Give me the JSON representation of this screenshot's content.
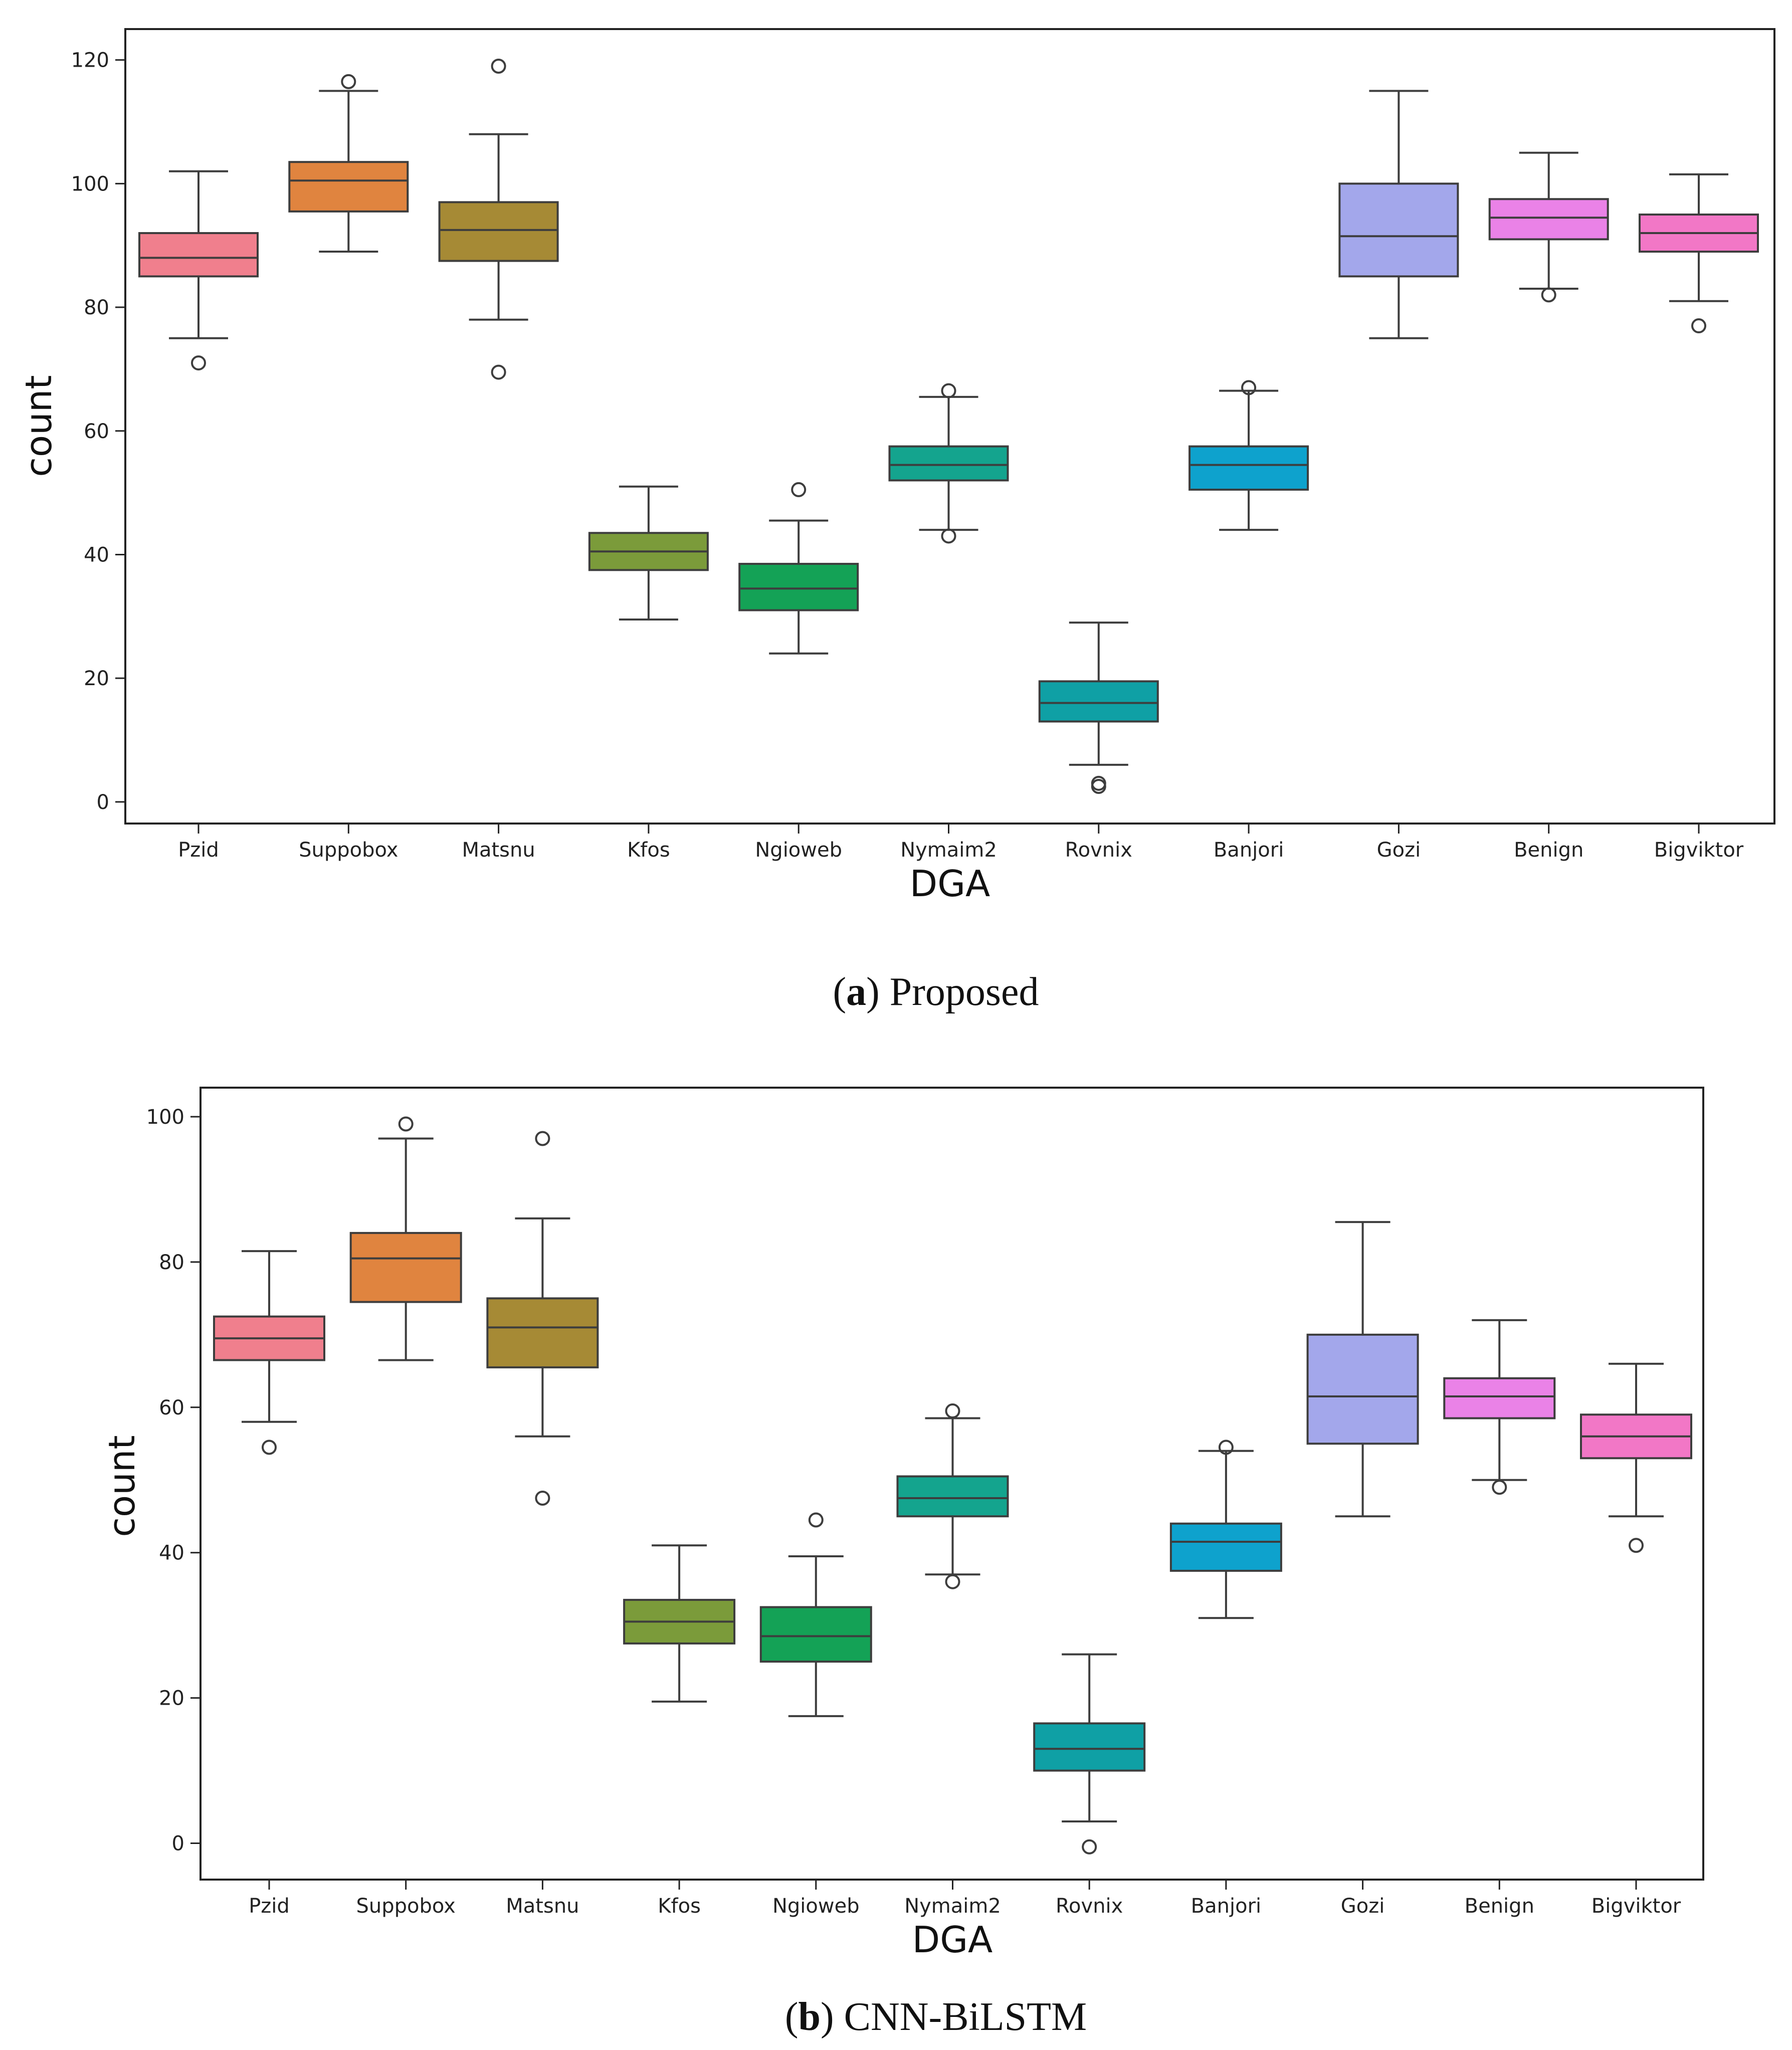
{
  "chart_data": [
    {
      "type": "box",
      "caption": {
        "label": "a",
        "open": "(",
        "close": ")",
        "text": " Proposed"
      },
      "xlabel": "DGA",
      "ylabel": "count",
      "ylim": [
        -3.5,
        125
      ],
      "yticks": [
        0,
        20,
        40,
        60,
        80,
        100,
        120
      ],
      "categories": [
        "Pzid",
        "Suppobox",
        "Matsnu",
        "Kfos",
        "Ngioweb",
        "Nymaim2",
        "Rovnix",
        "Banjori",
        "Gozi",
        "Benign",
        "Bigviktor"
      ],
      "colors": [
        "#f07f8d",
        "#e0843f",
        "#a68a35",
        "#7b9b3a",
        "#14a256",
        "#14a48e",
        "#0fa0a5",
        "#0ea2cd",
        "#a3a7eb",
        "#ea82e7",
        "#f277c6"
      ],
      "boxes": [
        {
          "q1": 85,
          "median": 88,
          "q3": 92,
          "whisker_low": 75,
          "whisker_high": 102,
          "outliers": [
            71
          ]
        },
        {
          "q1": 95.5,
          "median": 100.5,
          "q3": 103.5,
          "whisker_low": 89,
          "whisker_high": 115,
          "outliers": [
            116.5
          ]
        },
        {
          "q1": 87.5,
          "median": 92.5,
          "q3": 97,
          "whisker_low": 78,
          "whisker_high": 108,
          "outliers": [
            119,
            69.5
          ]
        },
        {
          "q1": 37.5,
          "median": 40.5,
          "q3": 43.5,
          "whisker_low": 29.5,
          "whisker_high": 51,
          "outliers": []
        },
        {
          "q1": 31,
          "median": 34.5,
          "q3": 38.5,
          "whisker_low": 24,
          "whisker_high": 45.5,
          "outliers": [
            50.5
          ]
        },
        {
          "q1": 52,
          "median": 54.5,
          "q3": 57.5,
          "whisker_low": 44,
          "whisker_high": 65.5,
          "outliers": [
            66.5,
            43
          ]
        },
        {
          "q1": 13,
          "median": 16,
          "q3": 19.5,
          "whisker_low": 6,
          "whisker_high": 29,
          "outliers": [
            3,
            2.5
          ]
        },
        {
          "q1": 50.5,
          "median": 54.5,
          "q3": 57.5,
          "whisker_low": 44,
          "whisker_high": 66.5,
          "outliers": [
            67
          ]
        },
        {
          "q1": 85,
          "median": 91.5,
          "q3": 100,
          "whisker_low": 75,
          "whisker_high": 115,
          "outliers": []
        },
        {
          "q1": 91,
          "median": 94.5,
          "q3": 97.5,
          "whisker_low": 83,
          "whisker_high": 105,
          "outliers": [
            82
          ]
        },
        {
          "q1": 89,
          "median": 92,
          "q3": 95,
          "whisker_low": 81,
          "whisker_high": 101.5,
          "outliers": [
            77
          ]
        }
      ]
    },
    {
      "type": "box",
      "caption": {
        "label": "b",
        "open": "(",
        "close": ")",
        "text": " CNN-BiLSTM"
      },
      "xlabel": "DGA",
      "ylabel": "count",
      "ylim": [
        -5,
        104
      ],
      "yticks": [
        0,
        20,
        40,
        60,
        80,
        100
      ],
      "categories": [
        "Pzid",
        "Suppobox",
        "Matsnu",
        "Kfos",
        "Ngioweb",
        "Nymaim2",
        "Rovnix",
        "Banjori",
        "Gozi",
        "Benign",
        "Bigviktor"
      ],
      "colors": [
        "#f07f8d",
        "#e0843f",
        "#a68a35",
        "#7b9b3a",
        "#14a256",
        "#14a48e",
        "#0fa0a5",
        "#0ea2cd",
        "#a3a7eb",
        "#ea82e7",
        "#f277c6"
      ],
      "boxes": [
        {
          "q1": 66.5,
          "median": 69.5,
          "q3": 72.5,
          "whisker_low": 58,
          "whisker_high": 81.5,
          "outliers": [
            54.5
          ]
        },
        {
          "q1": 74.5,
          "median": 80.5,
          "q3": 84,
          "whisker_low": 66.5,
          "whisker_high": 97,
          "outliers": [
            99
          ]
        },
        {
          "q1": 65.5,
          "median": 71,
          "q3": 75,
          "whisker_low": 56,
          "whisker_high": 86,
          "outliers": [
            97,
            47.5
          ]
        },
        {
          "q1": 27.5,
          "median": 30.5,
          "q3": 33.5,
          "whisker_low": 19.5,
          "whisker_high": 41,
          "outliers": []
        },
        {
          "q1": 25,
          "median": 28.5,
          "q3": 32.5,
          "whisker_low": 17.5,
          "whisker_high": 39.5,
          "outliers": [
            44.5
          ]
        },
        {
          "q1": 45,
          "median": 47.5,
          "q3": 50.5,
          "whisker_low": 37,
          "whisker_high": 58.5,
          "outliers": [
            59.5,
            36
          ]
        },
        {
          "q1": 10,
          "median": 13,
          "q3": 16.5,
          "whisker_low": 3,
          "whisker_high": 26,
          "outliers": [
            -0.5
          ]
        },
        {
          "q1": 37.5,
          "median": 41.5,
          "q3": 44,
          "whisker_low": 31,
          "whisker_high": 54,
          "outliers": [
            54.5
          ]
        },
        {
          "q1": 55,
          "median": 61.5,
          "q3": 70,
          "whisker_low": 45,
          "whisker_high": 85.5,
          "outliers": []
        },
        {
          "q1": 58.5,
          "median": 61.5,
          "q3": 64,
          "whisker_low": 50,
          "whisker_high": 72,
          "outliers": [
            49
          ]
        },
        {
          "q1": 53,
          "median": 56,
          "q3": 59,
          "whisker_low": 45,
          "whisker_high": 66,
          "outliers": [
            41
          ]
        }
      ]
    }
  ]
}
